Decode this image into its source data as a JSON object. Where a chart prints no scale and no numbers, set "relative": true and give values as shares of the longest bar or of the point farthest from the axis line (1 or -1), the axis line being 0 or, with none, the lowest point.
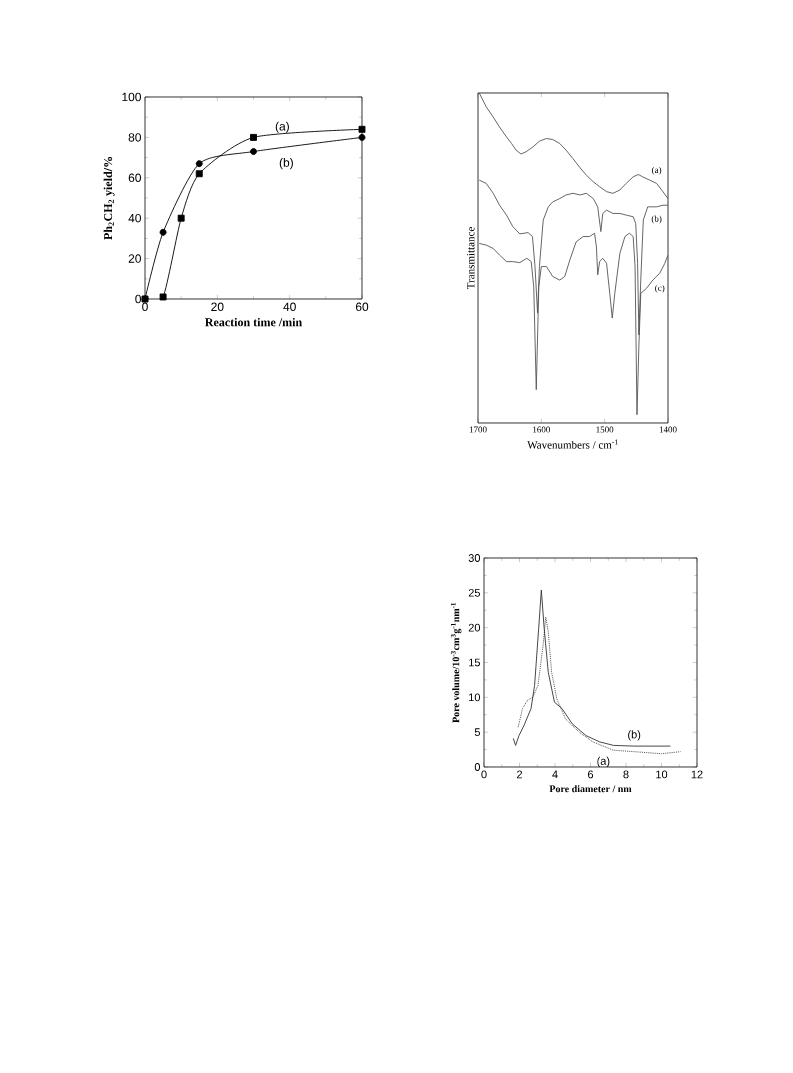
{
  "chart_data": [
    {
      "type": "line",
      "xlabel": "Reaction time /min",
      "ylabel": "Ph$_{2}$CH$_{2}$ yield/%",
      "xlim": [
        0,
        60
      ],
      "ylim": [
        0,
        100
      ],
      "xticks": [
        0,
        20,
        40,
        60
      ],
      "yticks": [
        0,
        20,
        40,
        60,
        80,
        100
      ],
      "series": [
        {
          "name": "(a)",
          "color": "#000000",
          "marker": "square",
          "line_style": "solid",
          "x": [
            0,
            5,
            10,
            15,
            30,
            60
          ],
          "values": [
            0,
            1,
            40,
            62,
            80,
            84
          ]
        },
        {
          "name": "(b)",
          "color": "#000000",
          "marker": "circle",
          "line_style": "solid",
          "x": [
            0,
            5,
            15,
            30,
            60
          ],
          "values": [
            0,
            33,
            67,
            73,
            80
          ]
        }
      ]
    },
    {
      "type": "line",
      "relative": true,
      "xlabel": "Wavenumbers / cm$^{-1}$",
      "ylabel": "Transmittance",
      "xlim": [
        1700,
        1400
      ],
      "xticks": [
        1700,
        1600,
        1500,
        1400
      ],
      "series": [
        {
          "name": "(a)",
          "color": "#555555",
          "line_style": "solid",
          "x": [
            1698,
            1687,
            1676,
            1666,
            1655,
            1647,
            1640,
            1632,
            1624,
            1613,
            1603,
            1592,
            1582,
            1571,
            1561,
            1550,
            1540,
            1529,
            1518,
            1508,
            1497,
            1487,
            1476,
            1466,
            1455,
            1447,
            1440,
            1429,
            1418,
            1408,
            1400
          ],
          "values": [
            1.0,
            0.958,
            0.927,
            0.897,
            0.867,
            0.847,
            0.827,
            0.815,
            0.822,
            0.837,
            0.854,
            0.862,
            0.859,
            0.847,
            0.827,
            0.801,
            0.776,
            0.751,
            0.731,
            0.716,
            0.701,
            0.696,
            0.706,
            0.726,
            0.746,
            0.753,
            0.746,
            0.736,
            0.726,
            0.701,
            0.68
          ]
        },
        {
          "name": "(b)",
          "color": "#555555",
          "line_style": "solid",
          "x": [
            1698,
            1687,
            1676,
            1666,
            1655,
            1645,
            1634,
            1621,
            1614,
            1610,
            1606,
            1603,
            1597,
            1589,
            1582,
            1571,
            1561,
            1550,
            1539,
            1529,
            1518,
            1511,
            1506,
            1503,
            1497,
            1487,
            1476,
            1466,
            1455,
            1451,
            1448,
            1446,
            1443,
            1439,
            1432,
            1418,
            1408,
            1400
          ],
          "values": [
            0.736,
            0.726,
            0.696,
            0.66,
            0.63,
            0.595,
            0.573,
            0.577,
            0.565,
            0.474,
            0.333,
            0.474,
            0.615,
            0.655,
            0.67,
            0.68,
            0.691,
            0.696,
            0.691,
            0.696,
            0.68,
            0.655,
            0.58,
            0.635,
            0.645,
            0.635,
            0.635,
            0.63,
            0.625,
            0.605,
            0.484,
            0.267,
            0.433,
            0.615,
            0.655,
            0.655,
            0.66,
            0.66
          ]
        },
        {
          "name": "(c)",
          "color": "#555555",
          "line_style": "solid",
          "x": [
            1698,
            1687,
            1676,
            1666,
            1655,
            1645,
            1634,
            1623,
            1616,
            1612,
            1608,
            1604,
            1600,
            1592,
            1582,
            1571,
            1563,
            1555,
            1545,
            1534,
            1524,
            1516,
            1513,
            1511,
            1508,
            1503,
            1497,
            1492,
            1488,
            1484,
            1476,
            1468,
            1461,
            1455,
            1452,
            1449,
            1446,
            1443,
            1434,
            1424,
            1413,
            1405,
            1400
          ],
          "values": [
            0.544,
            0.539,
            0.529,
            0.509,
            0.489,
            0.489,
            0.486,
            0.499,
            0.489,
            0.413,
            0.101,
            0.413,
            0.474,
            0.474,
            0.444,
            0.433,
            0.444,
            0.494,
            0.549,
            0.565,
            0.565,
            0.575,
            0.534,
            0.449,
            0.489,
            0.499,
            0.484,
            0.393,
            0.318,
            0.393,
            0.514,
            0.565,
            0.575,
            0.565,
            0.474,
            0.025,
            0.232,
            0.393,
            0.408,
            0.433,
            0.454,
            0.484,
            0.509
          ]
        }
      ]
    },
    {
      "type": "line",
      "xlabel": "Pore diameter / nm",
      "ylabel": "Pore volume/10$^{-3}$cm$^{3}$g$^{-1}$nm$^{-1}$",
      "xlim": [
        0,
        12
      ],
      "ylim": [
        0,
        30
      ],
      "xticks": [
        0,
        2,
        4,
        6,
        8,
        10,
        12
      ],
      "yticks": [
        0,
        5,
        10,
        15,
        20,
        25,
        30
      ],
      "series": [
        {
          "name": "(a)",
          "color": "#333333",
          "line_style": "dotted",
          "x": [
            1.92,
            2.17,
            2.46,
            2.75,
            3.04,
            3.33,
            3.48,
            3.62,
            3.81,
            4.1,
            4.59,
            5.36,
            6.14,
            7.3,
            8.46,
            10.0,
            11.07
          ],
          "values": [
            5.7,
            8.4,
            9.6,
            10.0,
            11.7,
            17.5,
            21.5,
            19.4,
            13.6,
            9.8,
            6.9,
            5.0,
            3.6,
            2.4,
            2.2,
            1.9,
            2.2
          ]
        },
        {
          "name": "(b)",
          "color": "#333333",
          "line_style": "solid",
          "x": [
            1.65,
            1.78,
            1.97,
            2.26,
            2.65,
            2.85,
            3.08,
            3.23,
            3.39,
            3.62,
            3.97,
            4.39,
            4.97,
            5.75,
            6.52,
            7.3,
            8.46,
            10.5
          ],
          "values": [
            4.1,
            3.1,
            4.5,
            6.0,
            8.4,
            11.7,
            19.9,
            25.4,
            19.9,
            13.6,
            9.3,
            8.4,
            6.2,
            4.5,
            3.6,
            3.1,
            3.0,
            3.0
          ]
        }
      ]
    }
  ]
}
